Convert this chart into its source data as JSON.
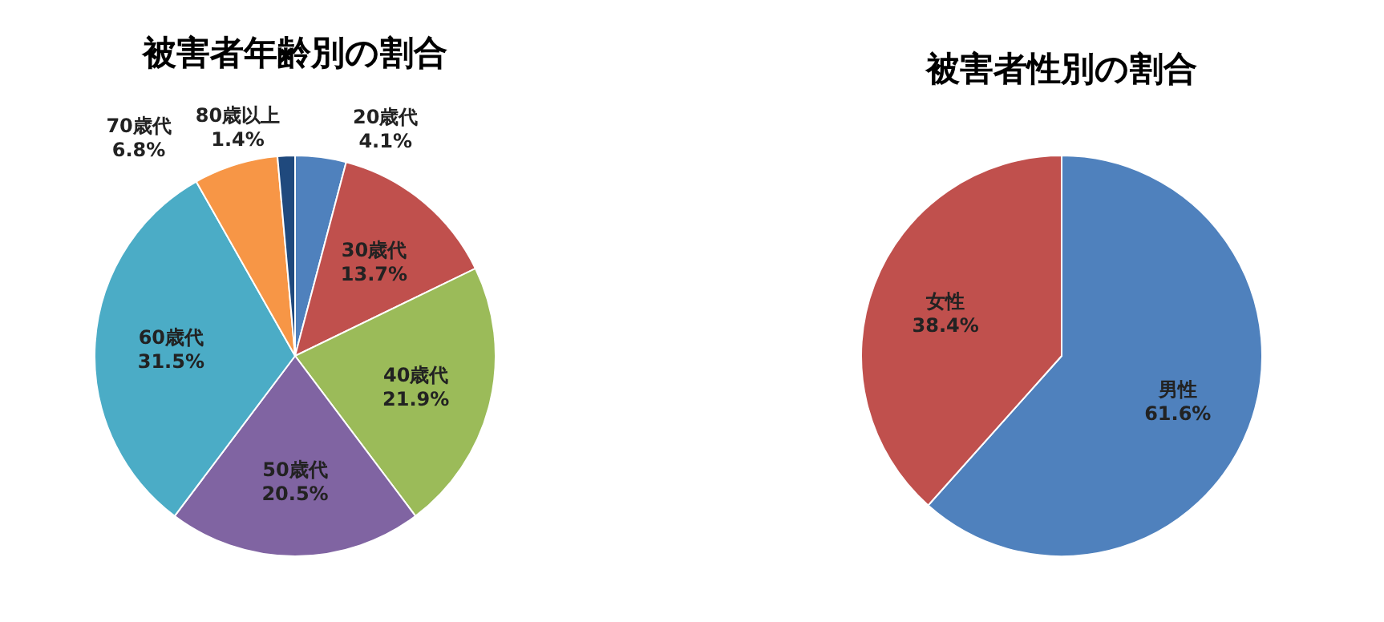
{
  "chart_data": [
    {
      "type": "pie",
      "title": "被害者年齢別の割合",
      "categories": [
        "20歳代",
        "30歳代",
        "40歳代",
        "50歳代",
        "60歳代",
        "70歳代",
        "80歳以上"
      ],
      "values": [
        4.1,
        13.7,
        21.9,
        20.5,
        31.5,
        6.8,
        1.4
      ],
      "colors": [
        "#4f81bd",
        "#c0504d",
        "#9bbb59",
        "#8064a2",
        "#4bacc6",
        "#f79646",
        "#1f497d"
      ],
      "value_labels": [
        "4.1%",
        "13.7%",
        "21.9%",
        "20.5%",
        "31.5%",
        "6.8%",
        "1.4%"
      ]
    },
    {
      "type": "pie",
      "title": "被害者性別の割合",
      "categories": [
        "男性",
        "女性"
      ],
      "values": [
        61.6,
        38.4
      ],
      "colors": [
        "#4f81bd",
        "#c0504d"
      ],
      "value_labels": [
        "61.6%",
        "38.4%"
      ]
    }
  ]
}
